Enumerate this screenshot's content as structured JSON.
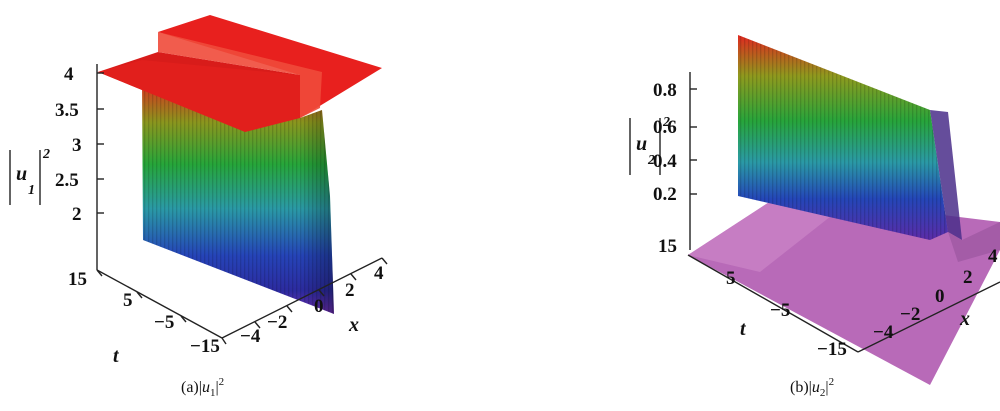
{
  "figures": [
    {
      "caption_prefix": "(a)|",
      "caption_var": "u",
      "caption_sub": "1",
      "caption_suffix": "|",
      "caption_sup": "2",
      "axis_var": "u",
      "axis_sub": "1",
      "axis_exp": "2",
      "x_label": "x",
      "t_label": "t",
      "z_ticks": [
        "4",
        "3.5",
        "3",
        "2.5",
        "2"
      ],
      "t_ticks": [
        "15",
        "5",
        "−5",
        "−15"
      ],
      "x_ticks": [
        "−4",
        "−2",
        "0",
        "2",
        "4"
      ]
    },
    {
      "caption_prefix": "(b)|",
      "caption_var": "u",
      "caption_sub": "2",
      "caption_suffix": "|",
      "caption_sup": "2",
      "axis_var": "u",
      "axis_sub": "2",
      "axis_exp": "2",
      "x_label": "x",
      "t_label": "t",
      "z_ticks": [
        "0.8",
        "0.6",
        "0.4",
        "0.2"
      ],
      "t_ticks": [
        "15",
        "5",
        "−5",
        "−15"
      ],
      "x_ticks": [
        "−4",
        "−2",
        "0",
        "2",
        "4"
      ]
    }
  ],
  "colors": {
    "top_plane": "#e8201e",
    "base_plane": "#b565b5",
    "gradient": [
      "#e52a1f",
      "#9b9a1f",
      "#2aa13e",
      "#2596a8",
      "#2145b4",
      "#2a2aa0",
      "#6a2cb0"
    ]
  }
}
